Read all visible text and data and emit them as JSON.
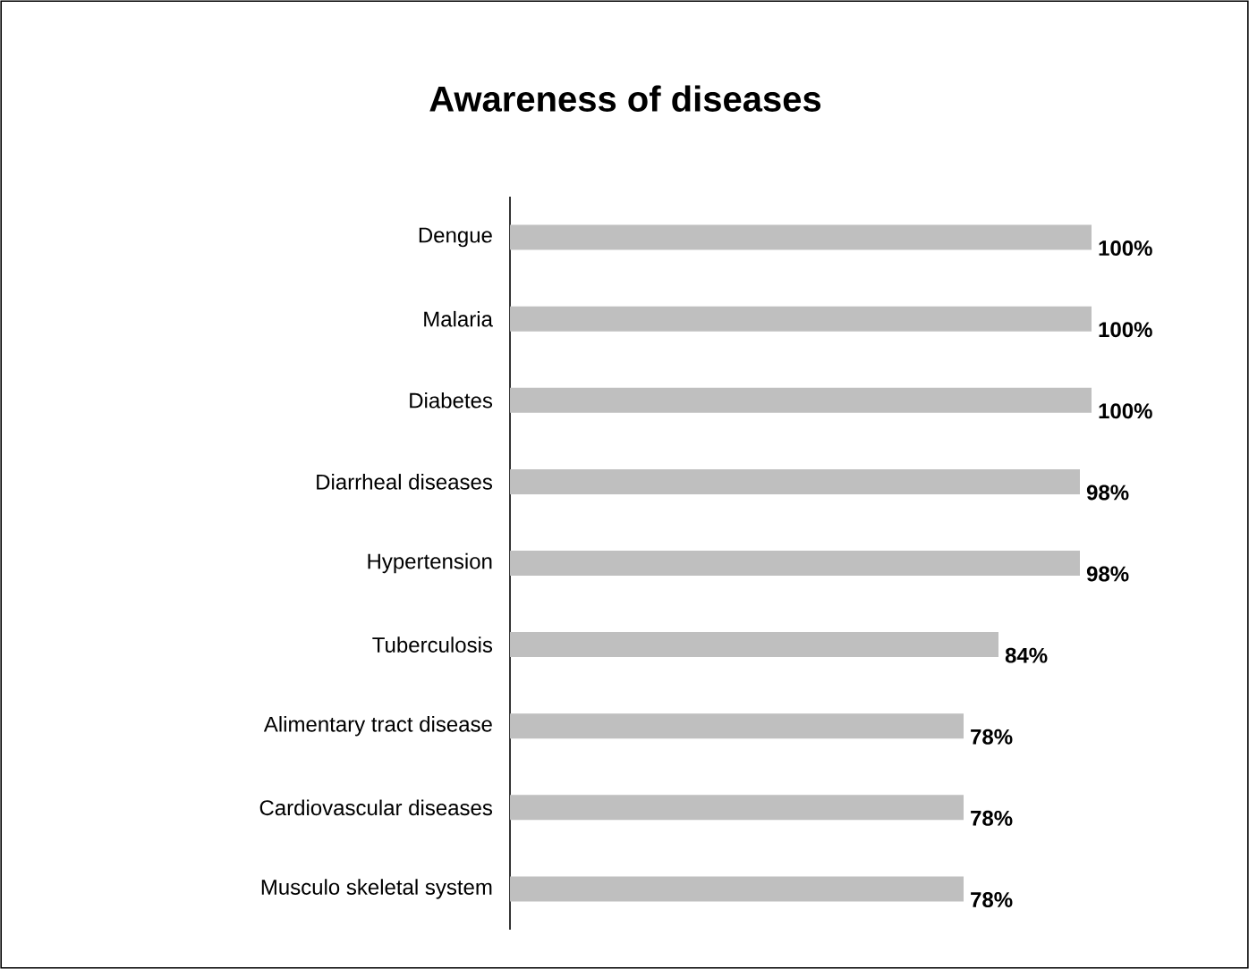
{
  "chart_data": {
    "type": "bar",
    "orientation": "horizontal",
    "title": "Awareness of diseases",
    "categories": [
      "Dengue",
      "Malaria",
      "Diabetes",
      "Diarrheal diseases",
      "Hypertension",
      "Tuberculosis",
      "Alimentary tract disease",
      "Cardiovascular diseases",
      "Musculo skeletal system"
    ],
    "values": [
      100,
      100,
      100,
      98,
      98,
      84,
      78,
      78,
      78
    ],
    "value_labels": [
      "100%",
      "100%",
      "100%",
      "98%",
      "98%",
      "84%",
      "78%",
      "78%",
      "78%"
    ],
    "color": "#bfbfbf"
  }
}
